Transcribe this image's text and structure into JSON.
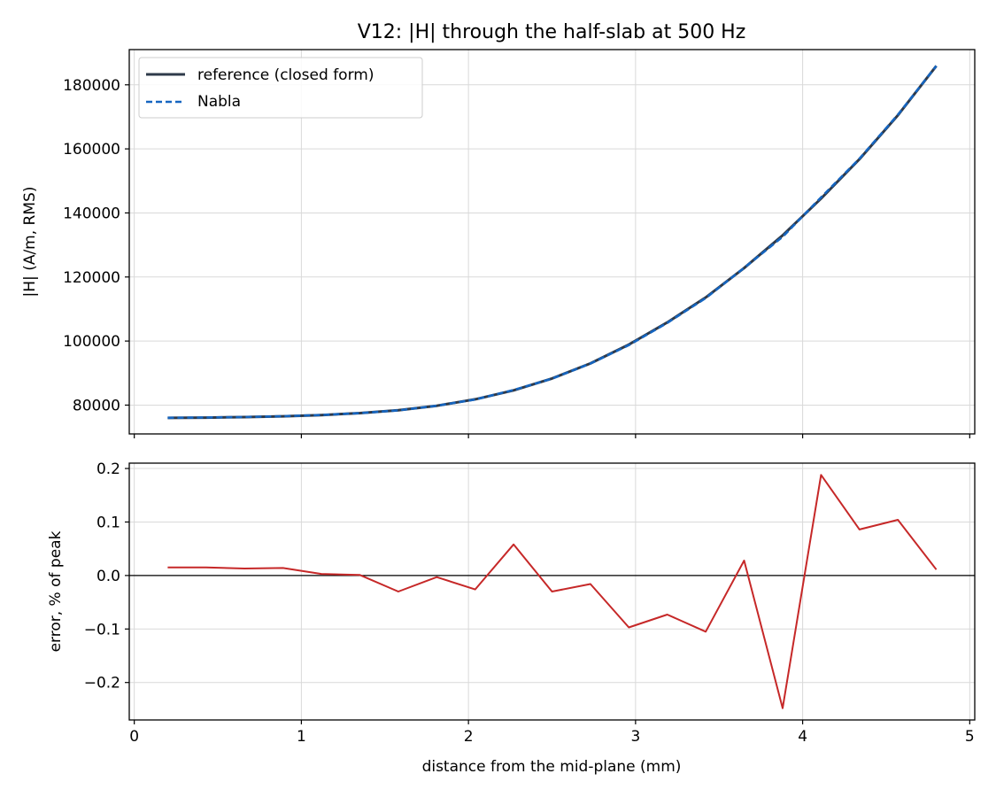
{
  "chart_data": [
    {
      "type": "line",
      "title": "V12: |H| through the half-slab at 500 Hz",
      "xlabel": "",
      "ylabel": "|H| (A/m, RMS)",
      "xlim": [
        -0.03,
        5.03
      ],
      "ylim": [
        71000,
        191000
      ],
      "xticks": [
        0,
        1,
        2,
        3,
        4,
        5
      ],
      "yticks": [
        80000,
        100000,
        120000,
        140000,
        160000,
        180000
      ],
      "ytick_labels": [
        "80000",
        "100000",
        "120000",
        "140000",
        "160000",
        "180000"
      ],
      "grid": true,
      "legend_position": "upper-left",
      "series": [
        {
          "name": "reference (closed form)",
          "color": "#2e3a4a",
          "style": "solid",
          "x": [
            0.2,
            0.43,
            0.66,
            0.89,
            1.12,
            1.35,
            1.58,
            1.81,
            2.04,
            2.27,
            2.5,
            2.73,
            2.96,
            3.19,
            3.42,
            3.65,
            3.88,
            4.11,
            4.34,
            4.57,
            4.8
          ],
          "y": [
            76000,
            76100,
            76250,
            76500,
            76900,
            77500,
            78400,
            79800,
            81800,
            84600,
            88300,
            93000,
            98900,
            105800,
            113600,
            122800,
            133000,
            144500,
            156800,
            170500,
            185900
          ]
        },
        {
          "name": "Nabla",
          "color": "#1565c0",
          "style": "dashed",
          "x": [
            0.2,
            0.43,
            0.66,
            0.89,
            1.12,
            1.35,
            1.58,
            1.81,
            2.04,
            2.27,
            2.5,
            2.73,
            2.96,
            3.19,
            3.42,
            3.65,
            3.88,
            4.11,
            4.34,
            4.57,
            4.8
          ],
          "y": [
            76030,
            76130,
            76275,
            76525,
            76905,
            77505,
            78345,
            79795,
            81750,
            84710,
            88245,
            92970,
            98720,
            105670,
            113405,
            122850,
            132540,
            144850,
            156960,
            170690,
            185920
          ]
        }
      ]
    },
    {
      "type": "line",
      "title": "",
      "xlabel": "distance from the mid-plane (mm)",
      "ylabel": "error, % of peak",
      "xlim": [
        -0.03,
        5.03
      ],
      "ylim": [
        -0.27,
        0.21
      ],
      "xticks": [
        0,
        1,
        2,
        3,
        4,
        5
      ],
      "xtick_labels": [
        "0",
        "1",
        "2",
        "3",
        "4",
        "5"
      ],
      "yticks": [
        -0.2,
        -0.1,
        0.0,
        0.1,
        0.2
      ],
      "ytick_labels": [
        "−0.2",
        "−0.1",
        "0.0",
        "0.1",
        "0.2"
      ],
      "grid": true,
      "zero_line": true,
      "series": [
        {
          "name": "",
          "color": "#c62828",
          "style": "solid",
          "x": [
            0.2,
            0.43,
            0.66,
            0.89,
            1.12,
            1.35,
            1.58,
            1.81,
            2.04,
            2.27,
            2.5,
            2.73,
            2.96,
            3.19,
            3.42,
            3.65,
            3.88,
            4.11,
            4.34,
            4.57,
            4.8
          ],
          "y": [
            0.015,
            0.015,
            0.013,
            0.014,
            0.003,
            0.001,
            -0.03,
            -0.003,
            -0.026,
            0.058,
            -0.03,
            -0.016,
            -0.097,
            -0.073,
            -0.105,
            0.028,
            -0.248,
            0.188,
            0.086,
            0.104,
            0.011
          ]
        }
      ]
    }
  ]
}
